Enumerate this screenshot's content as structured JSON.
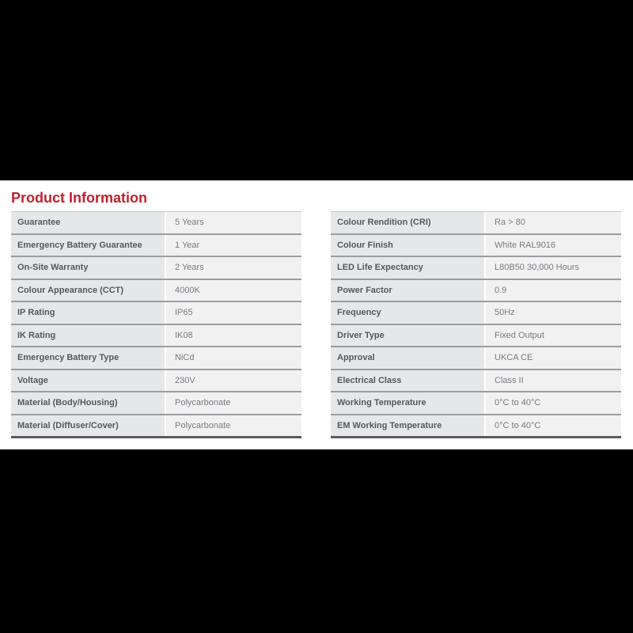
{
  "page": {
    "title": "Product Information",
    "title_color": "#c2202e"
  },
  "colors": {
    "accent_red": "#c2202e",
    "label_cell_bg": "#e6e7e8",
    "value_cell_bg": "#f1f1f2",
    "label_text": "#56585b",
    "value_text": "#797b7e",
    "row_separator": "#9b9da0",
    "table_bottom_border": "#5a5b5e",
    "band_background": "#ffffff",
    "outer_background": "#000000"
  },
  "tables": {
    "left": {
      "rows": [
        {
          "label": "Guarantee",
          "value": "5 Years"
        },
        {
          "label": "Emergency Battery Guarantee",
          "value": "1 Year"
        },
        {
          "label": "On-Site Warranty",
          "value": "2 Years"
        },
        {
          "label": "Colour Appearance (CCT)",
          "value": "4000K"
        },
        {
          "label": "IP Rating",
          "value": "IP65"
        },
        {
          "label": "IK Rating",
          "value": "IK08"
        },
        {
          "label": "Emergency Battery Type",
          "value": "NiCd"
        },
        {
          "label": "Voltage",
          "value": "230V"
        },
        {
          "label": "Material (Body/Housing)",
          "value": "Polycarbonate"
        },
        {
          "label": "Material (Diffuser/Cover)",
          "value": "Polycarbonate"
        }
      ]
    },
    "right": {
      "rows": [
        {
          "label": "Colour Rendition (CRI)",
          "value": "Ra > 80"
        },
        {
          "label": "Colour Finish",
          "value": "White RAL9016"
        },
        {
          "label": "LED Life Expectancy",
          "value": "L80B50 30,000 Hours"
        },
        {
          "label": "Power Factor",
          "value": "0.9"
        },
        {
          "label": "Frequency",
          "value": "50Hz"
        },
        {
          "label": "Driver Type",
          "value": "Fixed Output"
        },
        {
          "label": "Approval",
          "value": "UKCA CE"
        },
        {
          "label": "Electrical Class",
          "value": "Class II"
        },
        {
          "label": "Working Temperature",
          "value": "0°C to 40°C"
        },
        {
          "label": "EM Working Temperature",
          "value": "0°C to 40°C"
        }
      ]
    }
  }
}
